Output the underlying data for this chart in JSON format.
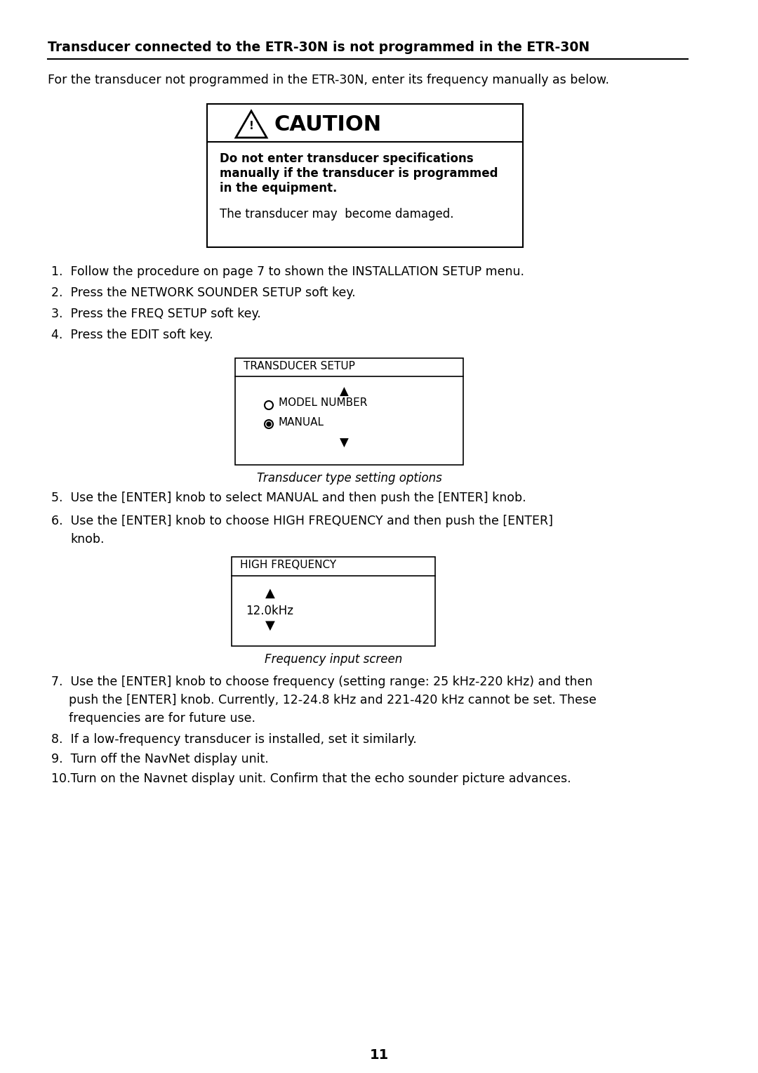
{
  "bg_color": "#ffffff",
  "text_color": "#000000",
  "page_number": "11",
  "heading": "Transducer connected to the ETR-30N is not programmed in the ETR-30N",
  "intro_text": "For the transducer not programmed in the ETR-30N, enter its frequency manually as below.",
  "caution_title": "⚠  CAUTION",
  "caution_bold_line1": "Do not enter transducer specifications",
  "caution_bold_line2": "manually if the transducer is programmed",
  "caution_bold_line3": "in the equipment.",
  "caution_normal": "The transducer may  become damaged.",
  "steps_1_4": [
    "Follow the procedure on page 7 to shown the INSTALLATION SETUP menu.",
    "Press the NETWORK SOUNDER SETUP soft key.",
    "Press the FREQ SETUP soft key.",
    "Press the EDIT soft key."
  ],
  "transducer_setup_title": "TRANSDUCER SETUP",
  "transducer_options": [
    "MODEL NUMBER",
    "MANUAL"
  ],
  "transducer_caption": "Transducer type setting options",
  "steps_5_6_line1": "Use the [ENTER] knob to select MANUAL and then push the [ENTER] knob.",
  "steps_6_line1": "Use the [ENTER] knob to choose HIGH FREQUENCY and then push the [ENTER]",
  "steps_6_line2": "knob.",
  "freq_setup_title": "HIGH FREQUENCY",
  "freq_value": "12.0kHz",
  "freq_caption": "Frequency input screen",
  "step7_line1": "Use the [ENTER] knob to choose frequency (setting range: 25 kHz-220 kHz) and then",
  "step7_line2": "push the [ENTER] knob. Currently, 12-24.8 kHz and 221-420 kHz cannot be set. These",
  "step7_line3": "frequencies are for future use.",
  "step8": "If a low-frequency transducer is installed, set it similarly.",
  "step9": "Turn off the NavNet display unit.",
  "step10": "Turn on the Navnet display unit. Confirm that the echo sounder picture advances."
}
